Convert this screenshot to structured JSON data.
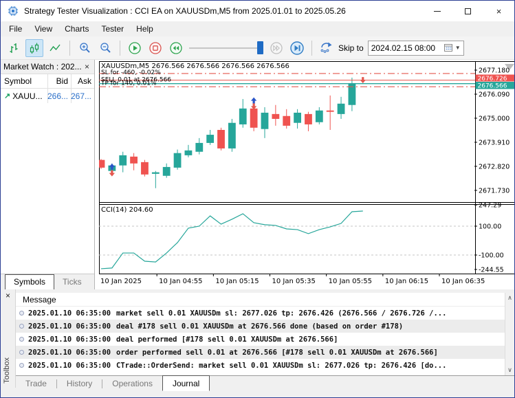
{
  "window": {
    "title": "Strategy Tester Visualization : CCI EA on XAUUSDm,M5 from 2025.01.01 to 2025.05.26",
    "close_glyph": "×"
  },
  "menu": {
    "items": [
      "File",
      "View",
      "Charts",
      "Tester",
      "Help"
    ]
  },
  "toolbar": {
    "skip_to_label": "Skip to",
    "date_value": "2024.02.15 08:00"
  },
  "market_watch": {
    "title": "Market Watch : 202...",
    "close_glyph": "×",
    "columns": {
      "symbol": "Symbol",
      "bid": "Bid",
      "ask": "Ask"
    },
    "row": {
      "arrow": "↗",
      "symbol": "XAUU...",
      "bid": "266...",
      "ask": "267..."
    },
    "tabs": {
      "symbols": "Symbols",
      "ticks": "Ticks"
    }
  },
  "chart": {
    "header": "XAUUSDm,M5  2676.566 2676.566 2676.566 2676.566",
    "sl_label": "SL for -460, -0.02%",
    "sell_label": "SELL 0.01 at 2676.566",
    "tp_label": "TP for 140, 0.01%",
    "cci_label": "CCI(14) 204.60",
    "colors": {
      "bull": "#26a69a",
      "bear": "#ef5350",
      "line_red": "#e4574e",
      "marker_up": "#2b55c8",
      "grid": "#c4c4c4",
      "axis_text": "#000000"
    },
    "badges": {
      "ask": "2676.726",
      "bid": "2676.566"
    },
    "chart_data": {
      "type": "candlestick",
      "symbol": "XAUUSDm",
      "timeframe": "M5",
      "x_labels": [
        "10 Jan 2025",
        "10 Jan 04:55",
        "10 Jan 05:15",
        "10 Jan 05:35",
        "10 Jan 05:55",
        "10 Jan 06:15",
        "10 Jan 06:35"
      ],
      "price_axis": [
        2677.18,
        2676.09,
        2675.0,
        2673.91,
        2672.82,
        2671.73
      ],
      "lines": {
        "sl": 2677.026,
        "ask": 2676.726,
        "bid": 2676.566,
        "tp": 2676.426
      },
      "candles": [
        [
          2673.11,
          2673.15,
          2672.7,
          2672.76
        ],
        [
          2672.61,
          2672.95,
          2672.48,
          2672.86
        ],
        [
          2672.86,
          2673.48,
          2672.55,
          2673.32
        ],
        [
          2673.26,
          2673.42,
          2672.64,
          2672.95
        ],
        [
          2673.01,
          2673.11,
          2672.36,
          2672.45
        ],
        [
          2672.48,
          2672.61,
          2671.83,
          2672.55
        ],
        [
          2672.39,
          2672.95,
          2672.3,
          2672.79
        ],
        [
          2672.76,
          2673.58,
          2672.67,
          2673.42
        ],
        [
          2673.32,
          2673.79,
          2673.23,
          2673.54
        ],
        [
          2673.48,
          2674.1,
          2673.36,
          2673.88
        ],
        [
          2673.88,
          2674.47,
          2673.79,
          2674.25
        ],
        [
          2674.47,
          2674.57,
          2673.54,
          2673.63
        ],
        [
          2673.63,
          2674.97,
          2673.48,
          2674.79
        ],
        [
          2674.72,
          2675.87,
          2674.57,
          2675.44
        ],
        [
          2675.44,
          2675.66,
          2674.41,
          2674.57
        ],
        [
          2674.51,
          2675.5,
          2674.1,
          2675.25
        ],
        [
          2675.19,
          2675.6,
          2674.66,
          2674.97
        ],
        [
          2675.1,
          2675.41,
          2674.53,
          2674.66
        ],
        [
          2674.79,
          2675.41,
          2674.53,
          2675.25
        ],
        [
          2675.19,
          2675.29,
          2674.41,
          2674.72
        ],
        [
          2674.82,
          2675.5,
          2674.72,
          2675.35
        ],
        [
          2675.35,
          2676.03,
          2674.47,
          2675.29
        ],
        [
          2675.19,
          2675.97,
          2674.97,
          2675.66
        ],
        [
          2675.6,
          2676.84,
          2675.32,
          2676.59
        ]
      ],
      "markers": [
        {
          "bar": 1,
          "up": 2672.79,
          "down": 2672.52
        },
        {
          "bar": 14,
          "up": 2675.79,
          "down": 2675.55
        },
        {
          "bar": 24,
          "down": 2676.74
        }
      ],
      "cci": {
        "period": 14,
        "current": 204.6,
        "values": [
          -195,
          -190,
          -86,
          -86,
          -143,
          -148,
          -86,
          -14,
          86,
          100,
          171,
          114,
          148,
          186,
          124,
          110,
          105,
          81,
          76,
          48,
          76,
          95,
          119,
          200,
          204.6
        ],
        "axis": [
          247.29,
          100,
          -100,
          -244.55
        ],
        "grid": [
          100,
          -100
        ]
      }
    }
  },
  "toolbox": {
    "side_label": "Toolbox",
    "close_glyph": "×",
    "message_header": "Message",
    "scroll_up": "∧",
    "scroll_down": "∨",
    "rows": [
      {
        "time": "2025.01.10 06:35:00",
        "text": "market sell 0.01 XAUUSDm sl: 2677.026 tp: 2676.426 (2676.566 / 2676.726 /..."
      },
      {
        "time": "2025.01.10 06:35:00",
        "text": "deal #178 sell 0.01 XAUUSDm at 2676.566 done (based on order #178)"
      },
      {
        "time": "2025.01.10 06:35:00",
        "text": "deal performed [#178 sell 0.01 XAUUSDm at 2676.566]"
      },
      {
        "time": "2025.01.10 06:35:00",
        "text": "order performed sell 0.01 at 2676.566 [#178 sell 0.01 XAUUSDm at 2676.566]"
      },
      {
        "time": "2025.01.10 06:35:00",
        "text": "CTrade::OrderSend: market sell 0.01 XAUUSDm sl: 2677.026 tp: 2676.426 [do..."
      }
    ],
    "tabs": [
      "Trade",
      "History",
      "Operations",
      "Journal"
    ],
    "active_tab": "Journal"
  }
}
